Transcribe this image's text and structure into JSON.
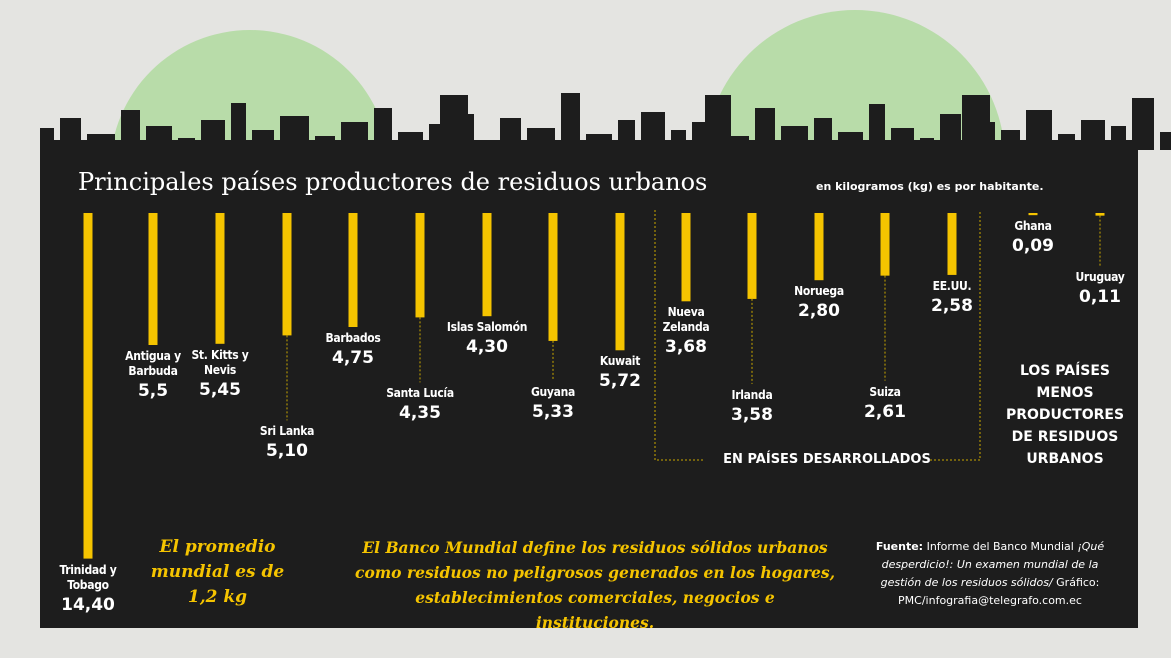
{
  "chart_data": {
    "type": "bar",
    "title": "Principales países productores de residuos urbanos",
    "subtitle": "en kilogramos (kg) es por habitante.",
    "categories": [
      "Trinidad y Tobago",
      "Antigua y Barbuda",
      "St. Kitts y Nevis",
      "Sri Lanka",
      "Barbados",
      "Santa Lucía",
      "Islas Salomón",
      "Guyana",
      "Kuwait",
      "Nueva Zelanda",
      "Irlanda",
      "Noruega",
      "Suiza",
      "EE.UU.",
      "Ghana",
      "Uruguay"
    ],
    "values": [
      14.4,
      5.5,
      5.45,
      5.1,
      4.75,
      4.35,
      4.3,
      5.33,
      5.72,
      3.68,
      3.58,
      2.8,
      2.61,
      2.58,
      0.09,
      0.11
    ],
    "value_labels": [
      "14,40",
      "5,5",
      "5,45",
      "5,10",
      "4,75",
      "4,35",
      "4,30",
      "5,33",
      "5,72",
      "3,68",
      "3,58",
      "2,80",
      "2,61",
      "2,58",
      "0,09",
      "0,11"
    ],
    "color": "#f5c400",
    "group_label": "EN PAÍSES DESARROLLADOS",
    "side_note": "LOS PAÍSES MENOS PRODUCTORES DE RESIDUOS URBANOS",
    "average_note": "El promedio mundial es de 1,2 kg",
    "definition": "El Banco Mundial define los residuos sólidos urbanos como residuos no peligrosos generados en los hogares, establecimientos comerciales, negocios e instituciones.",
    "source_label": "Fuente:",
    "source_text": "Informe del Banco Mundial",
    "source_title": "¡Qué desperdicio!: Un examen mundial de la gestión de los residuos sólidos/",
    "credit": "Gráfico: PMC/infografia@telegrafo.com.ec"
  }
}
